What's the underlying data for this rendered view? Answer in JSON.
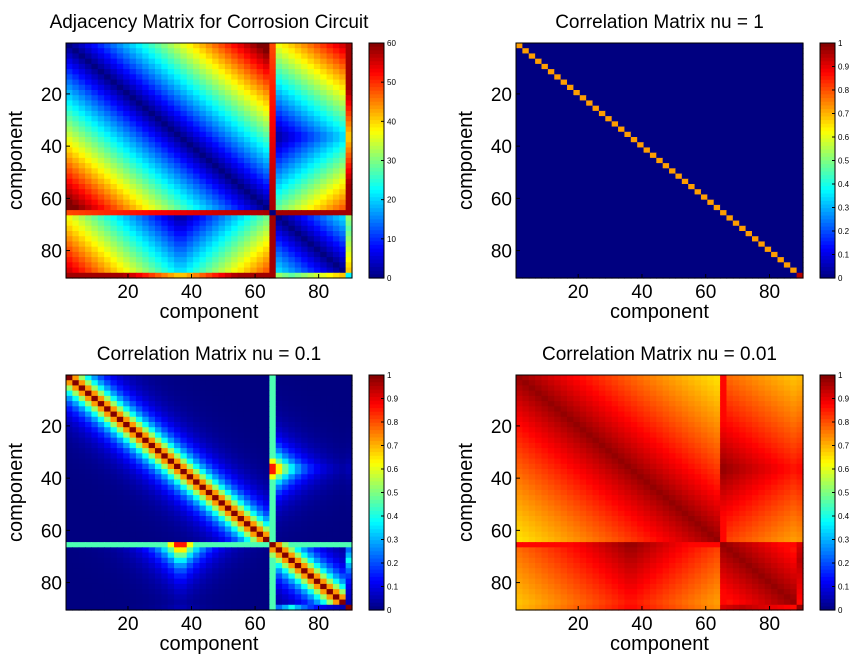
{
  "chart_data": [
    {
      "type": "heatmap",
      "title": "Adjacency Matrix for Corrosion Circuit",
      "xlabel": "component",
      "ylabel": "component",
      "x_ticks": [
        "20",
        "40",
        "60",
        "80"
      ],
      "y_ticks": [
        "20",
        "40",
        "60",
        "80"
      ],
      "size": 90,
      "clim": [
        0,
        60
      ],
      "colormap": "jet",
      "colorbar_ticks": [
        "0",
        "10",
        "20",
        "30",
        "40",
        "50",
        "60"
      ],
      "colorbar_tick_values": [
        0,
        10,
        20,
        30,
        40,
        50,
        60
      ],
      "kind": "adjacency",
      "breaks": [
        64,
        88
      ]
    },
    {
      "type": "heatmap",
      "title": "Correlation Matrix nu = 1",
      "xlabel": "component",
      "ylabel": "component",
      "x_ticks": [
        "20",
        "40",
        "60",
        "80"
      ],
      "y_ticks": [
        "20",
        "40",
        "60",
        "80"
      ],
      "size": 90,
      "clim": [
        0,
        1
      ],
      "colormap": "jet",
      "colorbar_ticks": [
        "0",
        "0.1",
        "0.2",
        "0.3",
        "0.4",
        "0.5",
        "0.6",
        "0.7",
        "0.8",
        "0.9",
        "1"
      ],
      "colorbar_tick_values": [
        0,
        0.1,
        0.2,
        0.3,
        0.4,
        0.5,
        0.6,
        0.7,
        0.8,
        0.9,
        1
      ],
      "kind": "correlation",
      "nu": 1,
      "breaks": [
        64,
        88
      ]
    },
    {
      "type": "heatmap",
      "title": "Correlation Matrix nu = 0.1",
      "xlabel": "component",
      "ylabel": "component",
      "x_ticks": [
        "20",
        "40",
        "60",
        "80"
      ],
      "y_ticks": [
        "20",
        "40",
        "60",
        "80"
      ],
      "size": 90,
      "clim": [
        0,
        1
      ],
      "colormap": "jet",
      "colorbar_ticks": [
        "0",
        "0.1",
        "0.2",
        "0.3",
        "0.4",
        "0.5",
        "0.6",
        "0.7",
        "0.8",
        "0.9",
        "1"
      ],
      "colorbar_tick_values": [
        0,
        0.1,
        0.2,
        0.3,
        0.4,
        0.5,
        0.6,
        0.7,
        0.8,
        0.9,
        1
      ],
      "kind": "correlation",
      "nu": 0.1,
      "breaks": [
        64,
        88
      ]
    },
    {
      "type": "heatmap",
      "title": "Correlation Matrix nu = 0.01",
      "xlabel": "component",
      "ylabel": "component",
      "x_ticks": [
        "20",
        "40",
        "60",
        "80"
      ],
      "y_ticks": [
        "20",
        "40",
        "60",
        "80"
      ],
      "size": 90,
      "clim": [
        0,
        1
      ],
      "colormap": "jet",
      "colorbar_ticks": [
        "0",
        "0.1",
        "0.2",
        "0.3",
        "0.4",
        "0.5",
        "0.6",
        "0.7",
        "0.8",
        "0.9",
        "1"
      ],
      "colorbar_tick_values": [
        0,
        0.1,
        0.2,
        0.3,
        0.4,
        0.5,
        0.6,
        0.7,
        0.8,
        0.9,
        1
      ],
      "kind": "correlation",
      "nu": 0.01,
      "breaks": [
        64,
        88
      ]
    }
  ]
}
